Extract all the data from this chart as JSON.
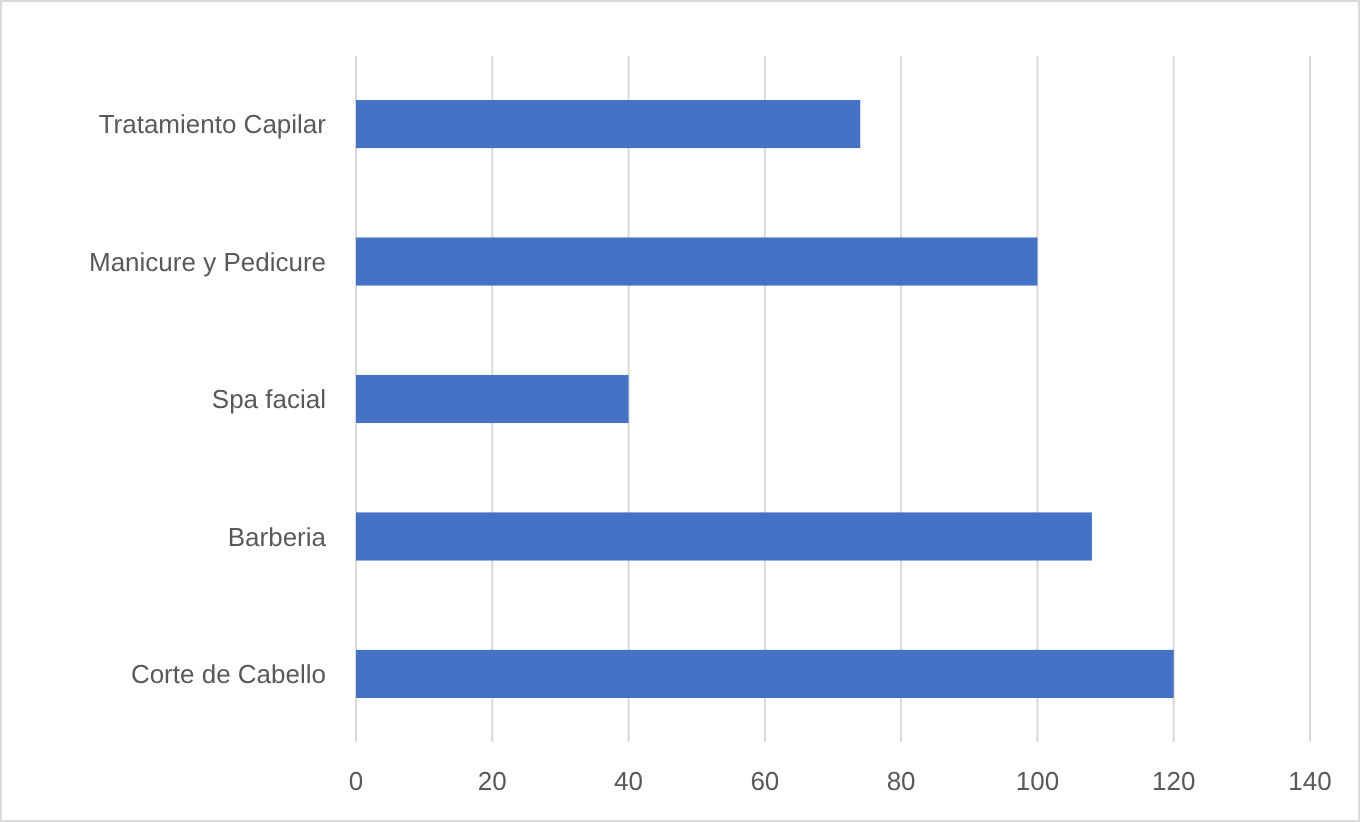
{
  "chart_data": {
    "type": "bar",
    "orientation": "horizontal",
    "categories": [
      "Tratamiento Capilar",
      "Manicure y Pedicure",
      "Spa facial",
      "Barberia",
      "Corte de Cabello"
    ],
    "values": [
      74,
      100,
      40,
      108,
      120
    ],
    "color": "#4472c4",
    "xlim": [
      0,
      140
    ],
    "xticks": [
      0,
      20,
      40,
      60,
      80,
      100,
      120,
      140
    ],
    "grid": "x"
  }
}
